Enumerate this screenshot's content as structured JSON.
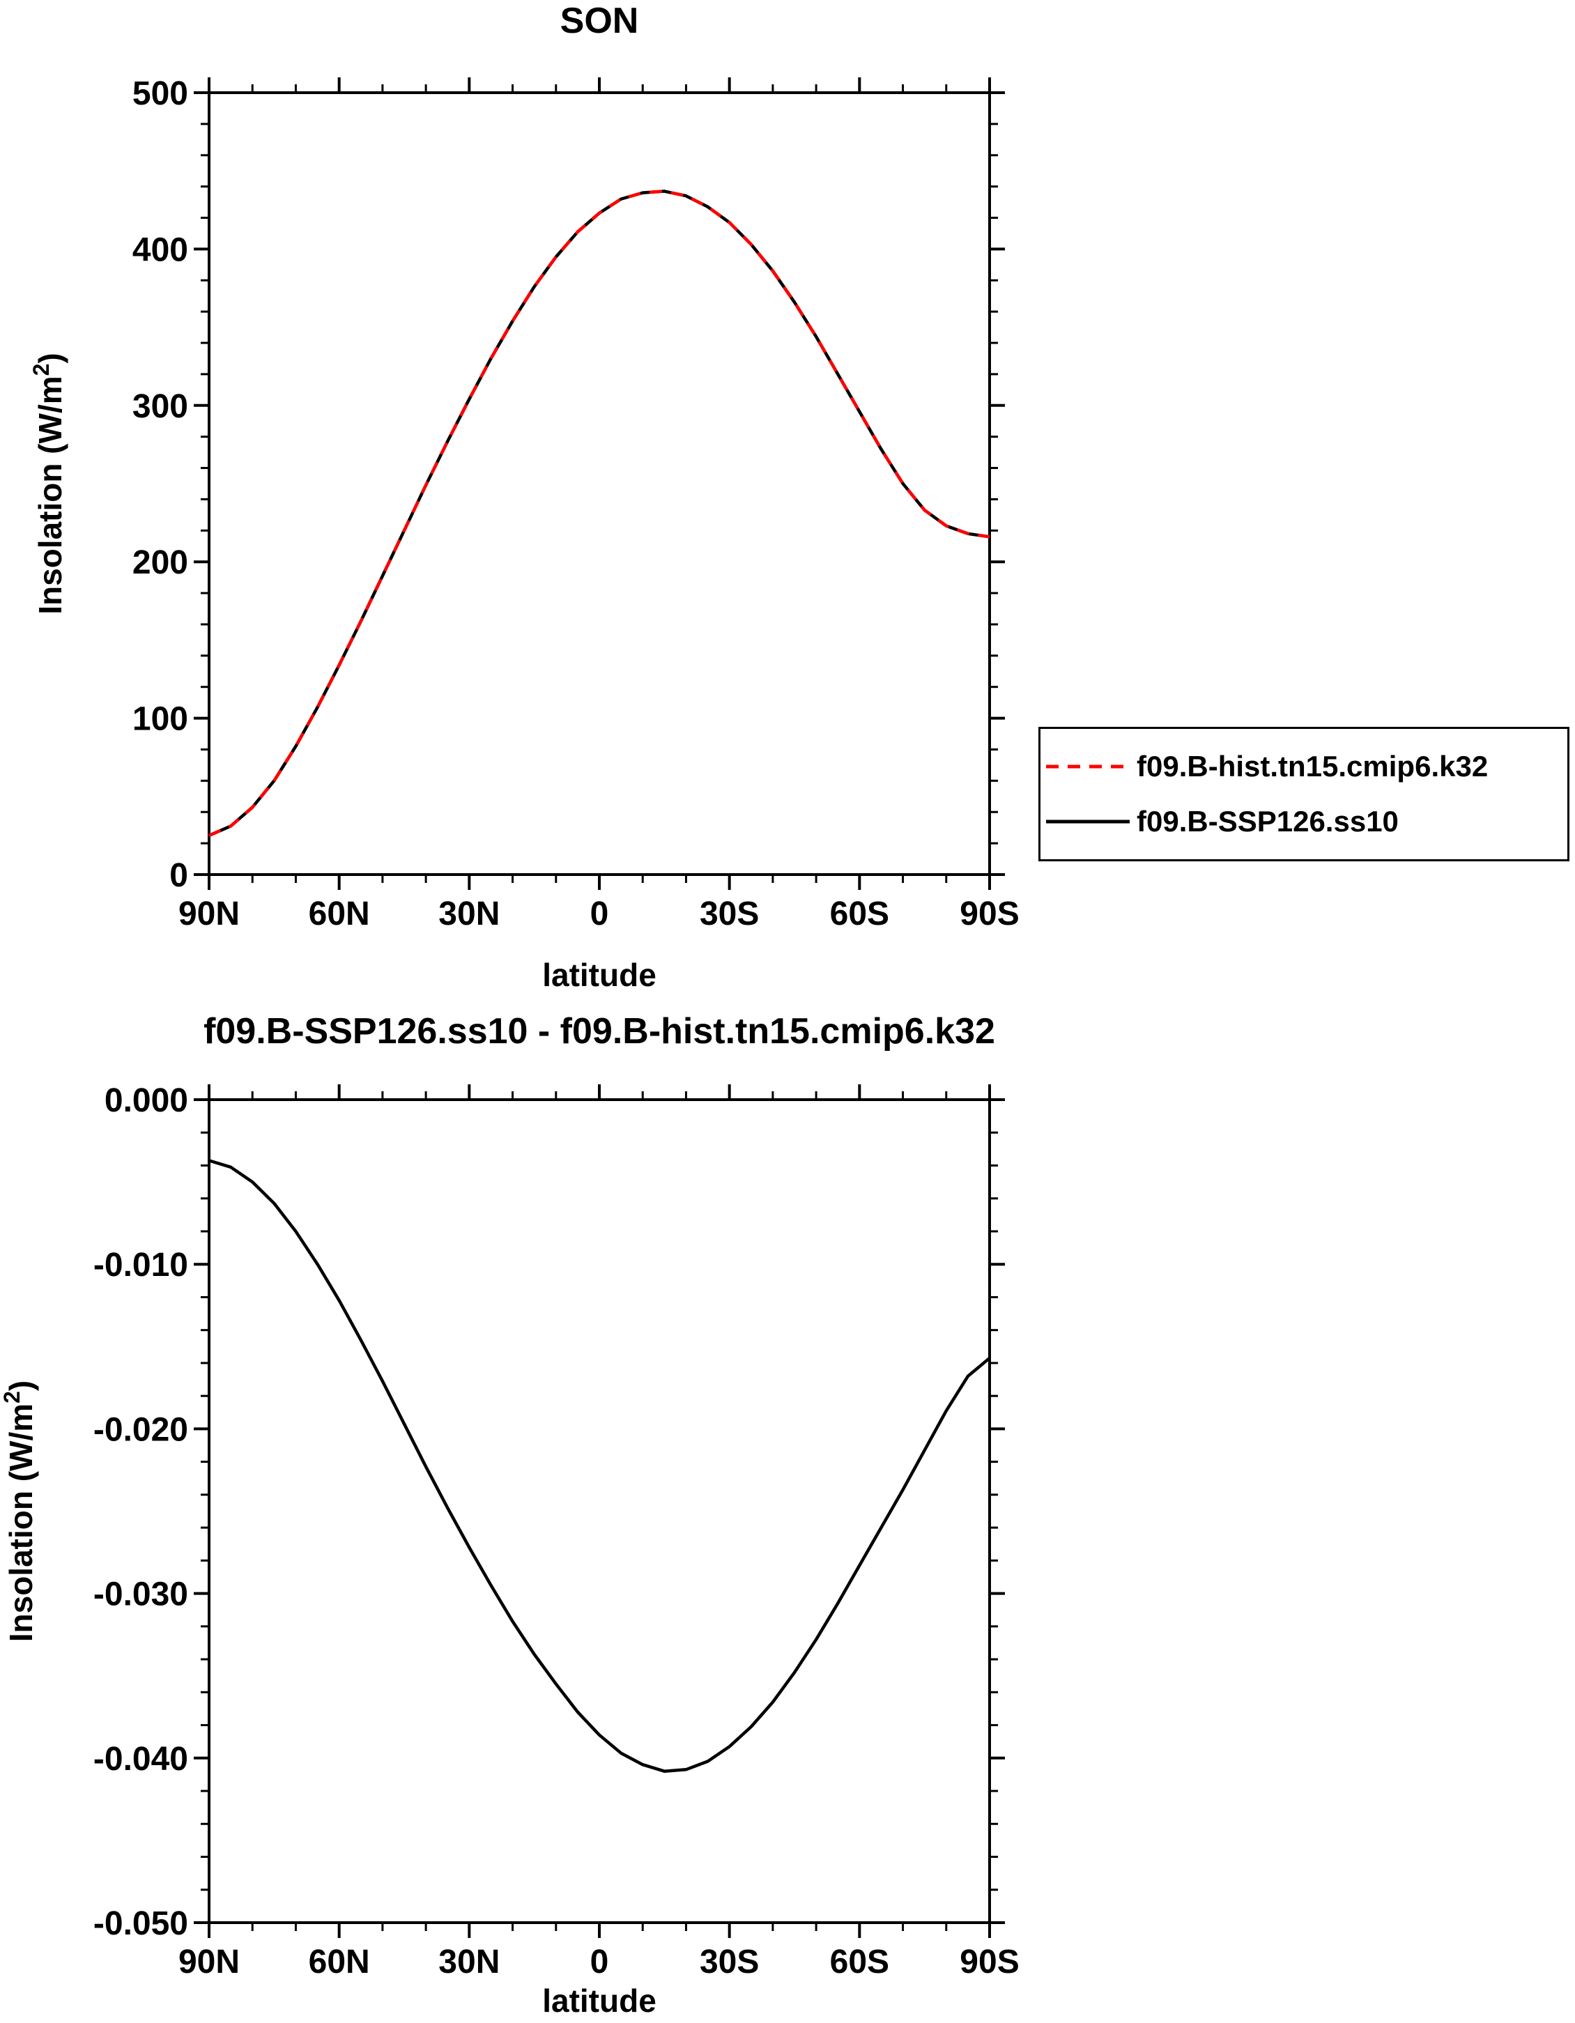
{
  "chart_data": [
    {
      "type": "line",
      "title": "SON",
      "xlabel": "latitude",
      "ylabel_pre": "Insolation (W/m",
      "ylabel_sup": "2",
      "ylabel_post": ")",
      "xlim": [
        90,
        -90
      ],
      "ylim": [
        0,
        500
      ],
      "x_minor_step": 10,
      "y_minor_step": 20,
      "xticks": [
        {
          "v": 90,
          "label": "90N"
        },
        {
          "v": 60,
          "label": "60N"
        },
        {
          "v": 30,
          "label": "30N"
        },
        {
          "v": 0,
          "label": "0"
        },
        {
          "v": -30,
          "label": "30S"
        },
        {
          "v": -60,
          "label": "60S"
        },
        {
          "v": -90,
          "label": "90S"
        }
      ],
      "yticks": [
        {
          "v": 0,
          "label": "0"
        },
        {
          "v": 100,
          "label": "100"
        },
        {
          "v": 200,
          "label": "200"
        },
        {
          "v": 300,
          "label": "300"
        },
        {
          "v": 400,
          "label": "400"
        },
        {
          "v": 500,
          "label": "500"
        }
      ],
      "x": [
        90,
        85,
        80,
        75,
        70,
        65,
        60,
        55,
        50,
        45,
        40,
        35,
        30,
        25,
        20,
        15,
        10,
        5,
        0,
        -5,
        -10,
        -15,
        -20,
        -25,
        -30,
        -35,
        -40,
        -45,
        -50,
        -55,
        -60,
        -65,
        -70,
        -75,
        -80,
        -85,
        -90
      ],
      "series": [
        {
          "name": "f09.B-hist.tn15.cmip6.k32",
          "color": "#ff0000",
          "line_style": "dashed",
          "values": [
            25,
            31,
            43,
            60,
            82,
            107,
            134,
            162,
            191,
            220,
            249,
            277,
            304,
            330,
            354,
            376,
            395,
            411,
            423,
            432,
            436,
            437,
            434,
            427,
            417,
            403,
            386,
            366,
            344,
            320,
            296,
            272,
            250,
            233,
            223,
            218,
            216
          ]
        },
        {
          "name": "f09.B-SSP126.ss10",
          "color": "#000000",
          "line_style": "solid",
          "values": [
            25,
            31,
            43,
            60,
            82,
            107,
            134,
            162,
            191,
            220,
            249,
            277,
            304,
            330,
            354,
            376,
            395,
            411,
            423,
            432,
            436,
            437,
            434,
            427,
            417,
            403,
            386,
            366,
            344,
            320,
            296,
            272,
            250,
            233,
            223,
            218,
            216
          ]
        }
      ],
      "legend": {
        "position": "right",
        "entries": [
          "f09.B-hist.tn15.cmip6.k32",
          "f09.B-SSP126.ss10"
        ]
      }
    },
    {
      "type": "line",
      "title": "f09.B-SSP126.ss10 - f09.B-hist.tn15.cmip6.k32",
      "xlabel": "latitude",
      "ylabel_pre": "Insolation (W/m",
      "ylabel_sup": "2",
      "ylabel_post": ")",
      "xlim": [
        90,
        -90
      ],
      "ylim": [
        -0.05,
        0.0
      ],
      "x_minor_step": 10,
      "y_minor_step": 0.002,
      "xticks": [
        {
          "v": 90,
          "label": "90N"
        },
        {
          "v": 60,
          "label": "60N"
        },
        {
          "v": 30,
          "label": "30N"
        },
        {
          "v": 0,
          "label": "0"
        },
        {
          "v": -30,
          "label": "30S"
        },
        {
          "v": -60,
          "label": "60S"
        },
        {
          "v": -90,
          "label": "90S"
        }
      ],
      "yticks": [
        {
          "v": 0,
          "label": "0.000"
        },
        {
          "v": -0.01,
          "label": "-0.010"
        },
        {
          "v": -0.02,
          "label": "-0.020"
        },
        {
          "v": -0.03,
          "label": "-0.030"
        },
        {
          "v": -0.04,
          "label": "-0.040"
        },
        {
          "v": -0.05,
          "label": "-0.050"
        }
      ],
      "x": [
        90,
        85,
        80,
        75,
        70,
        65,
        60,
        55,
        50,
        45,
        40,
        35,
        30,
        25,
        20,
        15,
        10,
        5,
        0,
        -5,
        -10,
        -15,
        -20,
        -25,
        -30,
        -35,
        -40,
        -45,
        -50,
        -55,
        -60,
        -65,
        -70,
        -75,
        -80,
        -85,
        -90
      ],
      "series": [
        {
          "name": "f09.B-SSP126.ss10 - f09.B-hist.tn15.cmip6.k32",
          "color": "#000000",
          "line_style": "solid",
          "values": [
            -0.0037,
            -0.0041,
            -0.005,
            -0.0063,
            -0.008,
            -0.01,
            -0.0122,
            -0.0146,
            -0.0171,
            -0.0197,
            -0.0223,
            -0.0248,
            -0.0272,
            -0.0295,
            -0.0317,
            -0.0337,
            -0.0355,
            -0.0372,
            -0.0386,
            -0.0397,
            -0.0404,
            -0.0408,
            -0.0407,
            -0.0402,
            -0.0393,
            -0.0381,
            -0.0366,
            -0.0348,
            -0.0328,
            -0.0306,
            -0.0283,
            -0.026,
            -0.0237,
            -0.0213,
            -0.0189,
            -0.0168,
            -0.0157
          ]
        }
      ],
      "legend": {
        "position": "none",
        "entries": []
      }
    }
  ]
}
